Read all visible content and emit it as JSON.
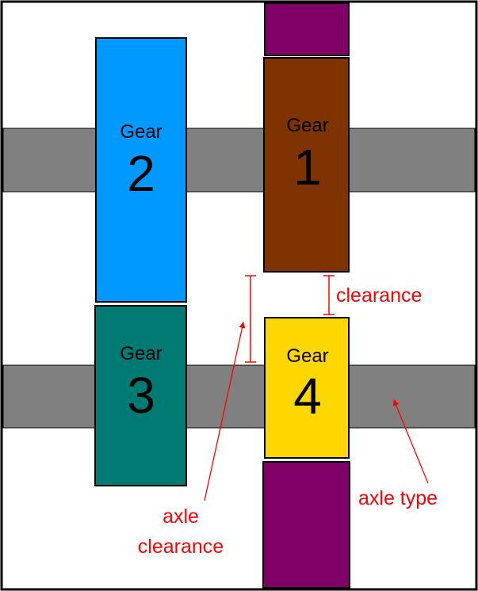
{
  "colors": {
    "axle": "#808080",
    "annotation": "#ff0000",
    "outline": "#000000",
    "spacer": "#800068"
  },
  "gears": [
    {
      "id": "gear-1",
      "word": "Gear",
      "number": "1",
      "color": "#7f3300"
    },
    {
      "id": "gear-2",
      "word": "Gear",
      "number": "2",
      "color": "#0099ff"
    },
    {
      "id": "gear-3",
      "word": "Gear",
      "number": "3",
      "color": "#007a73"
    },
    {
      "id": "gear-4",
      "word": "Gear",
      "number": "4",
      "color": "#ffd700"
    }
  ],
  "labels": {
    "clearance": "clearance",
    "axle_clearance_line1": "axle",
    "axle_clearance_line2": "clearance",
    "axle_type": "axle type"
  }
}
